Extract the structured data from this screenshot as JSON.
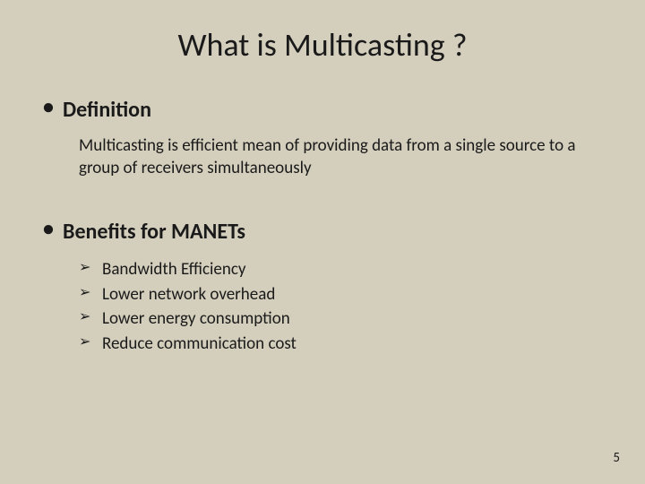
{
  "slide": {
    "title": "What is Multicasting ?",
    "page_number": "5",
    "background_color": "#d4cfbd",
    "text_color": "#1a1a1a",
    "title_fontsize": 36,
    "heading_fontsize": 24,
    "body_fontsize": 19
  },
  "sections": {
    "definition": {
      "heading": "Definition",
      "text": "Multicasting is efficient mean of providing data from a single source to a group of receivers simultaneously"
    },
    "benefits": {
      "heading": "Benefits for MANETs",
      "items": [
        "Bandwidth Efficiency",
        "Lower network overhead",
        "Lower energy consumption",
        "Reduce communication cost"
      ]
    }
  }
}
